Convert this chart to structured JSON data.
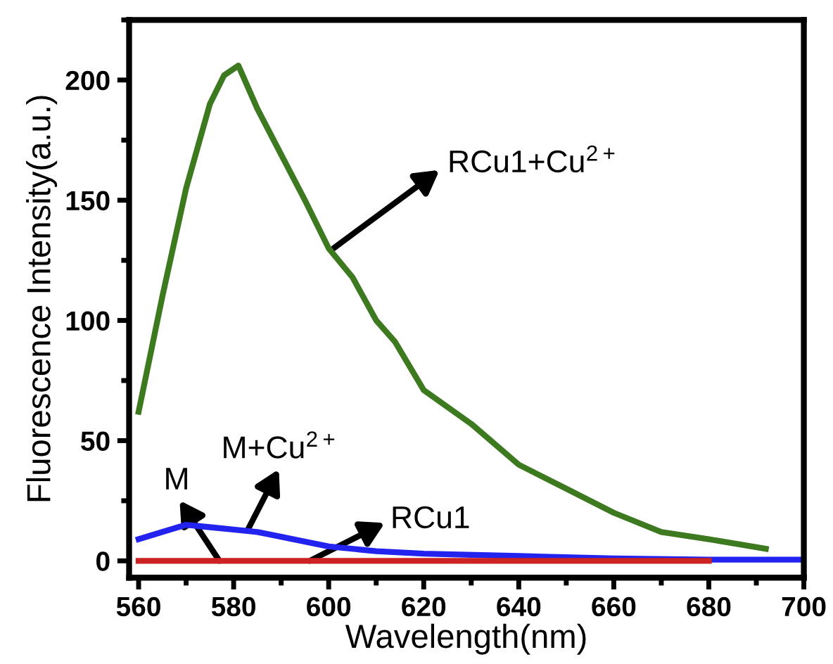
{
  "chart_data": {
    "type": "line",
    "xlabel": "Wavelength(nm)",
    "ylabel": "Fluorescence Intensity(a.u.)",
    "xlim": [
      558,
      700
    ],
    "ylim": [
      -7,
      225
    ],
    "xticks": [
      560,
      580,
      600,
      620,
      640,
      660,
      680,
      700
    ],
    "yticks": [
      0,
      50,
      100,
      150,
      200
    ],
    "grid": false,
    "legend": false,
    "marker": "none",
    "line_style": "solid",
    "series": [
      {
        "color": "#3d7a1f",
        "x": [
          560,
          565,
          570,
          575,
          578,
          581,
          585,
          590,
          595,
          600,
          605,
          610,
          614,
          620,
          630,
          640,
          650,
          660,
          670,
          680,
          692
        ],
        "values": [
          62,
          110,
          155,
          190,
          202,
          206,
          188,
          169,
          150,
          130,
          118,
          100,
          91,
          71,
          57,
          40,
          30,
          20,
          12,
          9,
          5
        ]
      },
      {
        "color": "#2323f0",
        "x": [
          560,
          565,
          570,
          575,
          580,
          585,
          590,
          600,
          610,
          620,
          640,
          660,
          680,
          700
        ],
        "values": [
          9,
          12,
          15,
          14,
          13,
          12,
          10,
          6,
          4,
          3,
          2,
          1,
          0.5,
          0.5
        ]
      },
      {
        "color": "#cc2222",
        "x": [
          560,
          580,
          600,
          620,
          640,
          660,
          680
        ],
        "values": [
          0,
          0,
          0,
          0,
          0,
          0,
          0
        ]
      }
    ],
    "annotations": [
      {
        "text": "RCu1+Cu$^{2+}$",
        "x": 601,
        "y": 130
      },
      {
        "text": "M+Cu$^{2+}$",
        "x": 583,
        "y": 13
      },
      {
        "text": "M",
        "x": 577,
        "y": 0
      },
      {
        "text": "RCu1",
        "x": 596,
        "y": 0
      }
    ]
  }
}
